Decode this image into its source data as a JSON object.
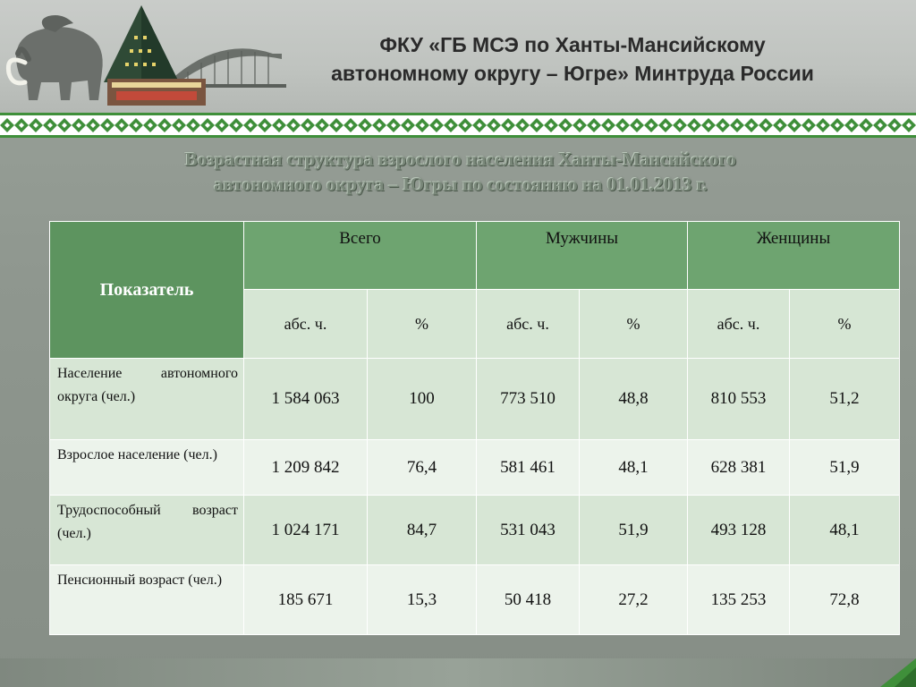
{
  "header": {
    "title_line1": "ФКУ «ГБ МСЭ по Ханты-Мансийскому",
    "title_line2": "автономному округу – Югре» Минтруда России"
  },
  "subtitle": {
    "line1": "Возрастная структура взрослого населения Ханты-Мансийского",
    "line2": "автономного округа – Югры по состоянию на 01.01.2013 г."
  },
  "table": {
    "indicator_header": "Показатель",
    "groups": [
      "Всего",
      "Мужчины",
      "Женщины"
    ],
    "subheaders": [
      "абс. ч.",
      "%",
      "абс. ч.",
      "%",
      "абс. ч.",
      "%"
    ],
    "rows": [
      {
        "label": "Население автономного округа (чел.)",
        "values": [
          "1 584 063",
          "100",
          "773 510",
          "48,8",
          "810 553",
          "51,2"
        ]
      },
      {
        "label": "Взрослое население (чел.)",
        "values": [
          "1 209 842",
          "76,4",
          "581 461",
          "48,1",
          "628 381",
          "51,9"
        ]
      },
      {
        "label": "Трудоспособный возраст (чел.)",
        "values": [
          "1 024 171",
          "84,7",
          "531 043",
          "51,9",
          "493 128",
          "48,1"
        ]
      },
      {
        "label": "Пенсионный возраст (чел.)",
        "values": [
          "185 671",
          "15,3",
          "50 418",
          "27,2",
          "135 253",
          "72,8"
        ]
      }
    ]
  },
  "colors": {
    "header_green": "#6ea470",
    "row_dark": "#d7e6d5",
    "row_light": "#ecf3eb",
    "ornament_green": "#3f8f3a"
  },
  "icons": {
    "logo": "mammoth-and-monument-icon"
  }
}
